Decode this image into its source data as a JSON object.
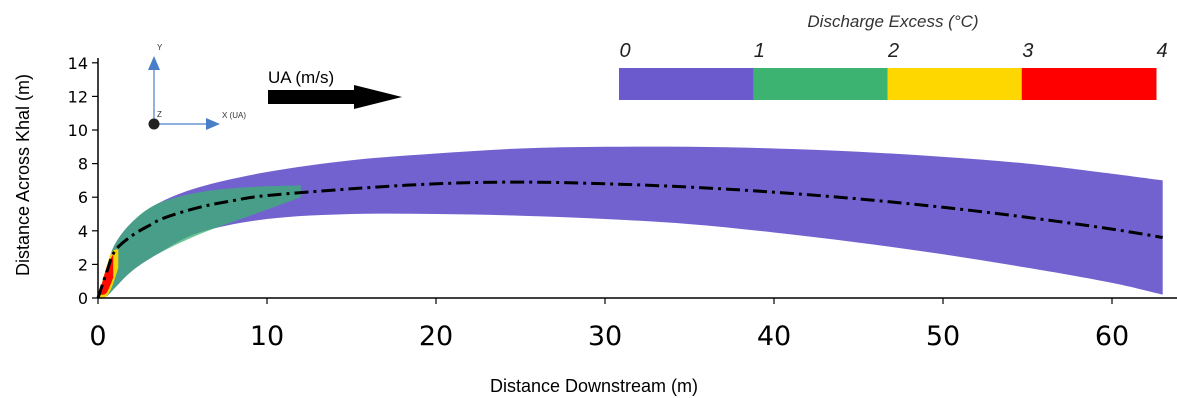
{
  "chart_data": {
    "type": "area",
    "xlabel": "Distance Downstream (m)",
    "ylabel": "Distance Across Khal (m)",
    "xlim": [
      0,
      63
    ],
    "ylim": [
      0,
      14
    ],
    "x_ticks": [
      0,
      10,
      20,
      30,
      40,
      50,
      60
    ],
    "y_ticks": [
      0,
      2,
      4,
      6,
      8,
      10,
      12,
      14
    ],
    "colorbar": {
      "title": "Discharge Excess  (°C)",
      "ticks": [
        "0",
        "1",
        "2",
        "3",
        "4"
      ],
      "colors": [
        "#6a5acd",
        "#3cb371",
        "#ffd700",
        "#ff0000"
      ]
    },
    "flow_arrow_label": "UA (m/s)",
    "coordinate_axes": {
      "y": "Y",
      "z": "Z",
      "x": "X (UA)"
    },
    "centerline": {
      "x": [
        0,
        0.5,
        1,
        2,
        3,
        4,
        6,
        8,
        10,
        15,
        20,
        25,
        30,
        35,
        40,
        45,
        50,
        55,
        60,
        63
      ],
      "y": [
        0,
        1.5,
        2.8,
        3.7,
        4.3,
        4.8,
        5.4,
        5.8,
        6.1,
        6.5,
        6.8,
        6.9,
        6.8,
        6.6,
        6.3,
        5.9,
        5.4,
        4.8,
        4.1,
        3.6
      ]
    },
    "zones": [
      {
        "excess": "0-1",
        "upper": {
          "x": [
            0,
            0.5,
            1,
            2,
            3.5,
            6,
            10,
            15,
            20,
            25,
            30,
            35,
            40,
            45,
            50,
            55,
            60,
            63
          ],
          "y": [
            0,
            1.8,
            3.2,
            4.5,
            5.6,
            6.6,
            7.5,
            8.2,
            8.6,
            8.9,
            9.0,
            9.0,
            8.9,
            8.7,
            8.4,
            8.0,
            7.4,
            7.0
          ]
        },
        "lower": {
          "x": [
            0,
            0.5,
            1,
            2,
            3.5,
            6,
            10,
            15,
            20,
            25,
            30,
            35,
            40,
            45,
            50,
            55,
            60,
            63
          ],
          "y": [
            0,
            0.1,
            0.6,
            1.6,
            2.6,
            3.9,
            4.7,
            5.0,
            5.0,
            4.9,
            4.7,
            4.4,
            3.9,
            3.3,
            2.6,
            1.8,
            0.9,
            0.2
          ]
        }
      },
      {
        "excess": "1-2",
        "upper": {
          "x": [
            0,
            0.5,
            1,
            2,
            3.5,
            6,
            9,
            12
          ],
          "y": [
            0,
            1.8,
            3.2,
            4.5,
            5.6,
            6.3,
            6.6,
            6.7
          ]
        },
        "lower": {
          "x": [
            0,
            0.5,
            1,
            2,
            3.5,
            6,
            9,
            12
          ],
          "y": [
            0,
            0.1,
            0.6,
            1.6,
            2.6,
            3.8,
            4.9,
            6.0
          ]
        }
      },
      {
        "excess": "2-3",
        "upper": {
          "x": [
            0,
            0.4,
            0.8,
            1.2
          ],
          "y": [
            0,
            1.5,
            2.7,
            2.9
          ]
        },
        "lower": {
          "x": [
            0,
            0.4,
            0.8,
            1.2
          ],
          "y": [
            0,
            0.0,
            0.6,
            1.8
          ]
        }
      },
      {
        "excess": "3-4",
        "upper": {
          "x": [
            0.1,
            0.5,
            0.9
          ],
          "y": [
            0.3,
            1.8,
            2.6
          ]
        },
        "lower": {
          "x": [
            0.1,
            0.5,
            0.9
          ],
          "y": [
            0.2,
            0.3,
            1.2
          ]
        }
      }
    ]
  }
}
